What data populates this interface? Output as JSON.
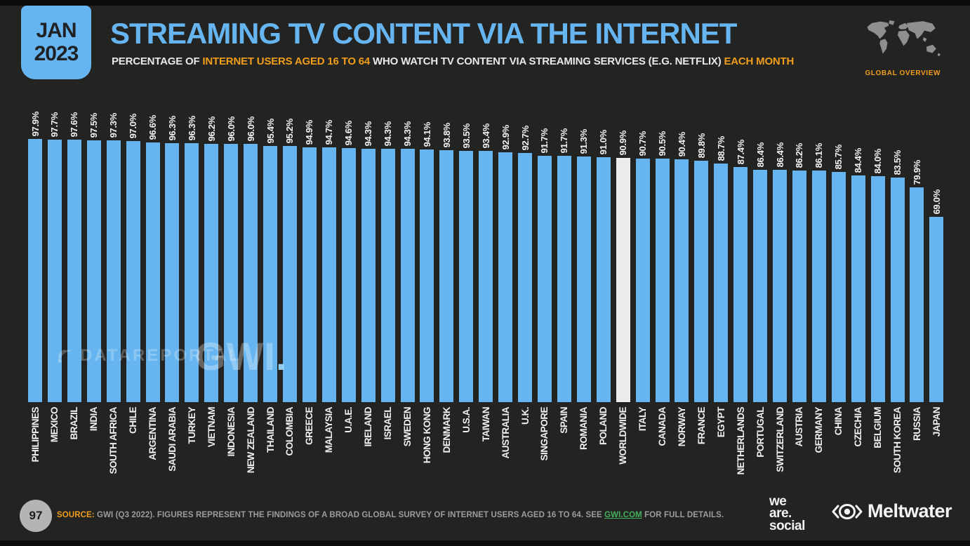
{
  "colors": {
    "accent_blue": "#66b5f0",
    "accent_orange": "#f09d1c",
    "bar_blue": "#66b5f0",
    "bar_highlight": "#ececea",
    "link_green": "#43b05c",
    "background": "#232322"
  },
  "header": {
    "date_line1": "JAN",
    "date_line2": "2023",
    "title": "STREAMING TV CONTENT VIA THE INTERNET",
    "subtitle": {
      "p1": "PERCENTAGE OF ",
      "h1": "INTERNET USERS AGED 16 TO 64",
      "p2": " WHO WATCH TV CONTENT VIA STREAMING SERVICES (E.G. NETFLIX) ",
      "h2": "EACH MONTH"
    },
    "region_label": "GLOBAL OVERVIEW"
  },
  "watermarks": {
    "left": "DATAREPORTAL",
    "right_text": "GWI",
    "right_dot": "."
  },
  "chart_data": {
    "type": "bar",
    "title": "STREAMING TV CONTENT VIA THE INTERNET",
    "subtitle": "PERCENTAGE OF INTERNET USERS AGED 16 TO 64 WHO WATCH TV CONTENT VIA STREAMING SERVICES (E.G. NETFLIX) EACH MONTH",
    "unit": "%",
    "xlabel": "",
    "ylabel": "",
    "ylim": [
      0,
      100
    ],
    "grid": false,
    "legend": false,
    "bar_color": "#66b5f0",
    "highlight_color": "#ececea",
    "highlight_category": "WORLDWIDE",
    "value_label_format": "one_decimal_percent",
    "categories": [
      "PHILIPPINES",
      "MEXICO",
      "BRAZIL",
      "INDIA",
      "SOUTH AFRICA",
      "CHILE",
      "ARGENTINA",
      "SAUDI ARABIA",
      "TURKEY",
      "VIETNAM",
      "INDONESIA",
      "NEW ZEALAND",
      "THAILAND",
      "COLOMBIA",
      "GREECE",
      "MALAYSIA",
      "U.A.E.",
      "IRELAND",
      "ISRAEL",
      "SWEDEN",
      "HONG KONG",
      "DENMARK",
      "U.S.A.",
      "TAIWAN",
      "AUSTRALIA",
      "U.K.",
      "SINGAPORE",
      "SPAIN",
      "ROMANIA",
      "POLAND",
      "WORLDWIDE",
      "ITALY",
      "CANADA",
      "NORWAY",
      "FRANCE",
      "EGYPT",
      "NETHERLANDS",
      "PORTUGAL",
      "SWITZERLAND",
      "AUSTRIA",
      "GERMANY",
      "CHINA",
      "CZECHIA",
      "BELGIUM",
      "SOUTH KOREA",
      "RUSSIA",
      "JAPAN"
    ],
    "values": [
      97.9,
      97.7,
      97.6,
      97.5,
      97.3,
      97.0,
      96.6,
      96.3,
      96.3,
      96.2,
      96.0,
      96.0,
      95.4,
      95.2,
      94.9,
      94.7,
      94.6,
      94.3,
      94.3,
      94.3,
      94.1,
      93.8,
      93.5,
      93.4,
      92.9,
      92.7,
      91.7,
      91.7,
      91.3,
      91.0,
      90.9,
      90.7,
      90.5,
      90.4,
      89.8,
      88.7,
      87.4,
      86.4,
      86.4,
      86.2,
      86.1,
      85.7,
      84.4,
      84.0,
      83.5,
      79.9,
      69.0
    ]
  },
  "footer": {
    "page_number": "97",
    "source_label": "SOURCE:",
    "source_text_1": " GWI (Q3 2022). FIGURES REPRESENT THE FINDINGS OF A BROAD GLOBAL SURVEY OF INTERNET USERS AGED 16 TO 64. SEE ",
    "source_link": "GWI.COM",
    "source_text_2": " FOR FULL DETAILS.",
    "we_are_social": {
      "line1": "we",
      "line2": "are.",
      "line3": "social"
    },
    "meltwater": "Meltwater"
  }
}
